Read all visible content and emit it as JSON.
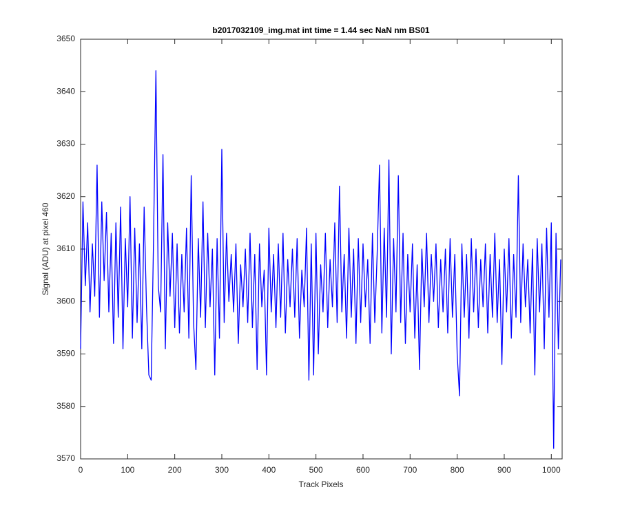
{
  "chart_data": {
    "type": "line",
    "title": "b2017032109_img.mat int time = 1.44 sec  NaN nm BS01",
    "x_label": "Track Pixels",
    "y_label": "Signal (ADU) at pixel 460",
    "xlim": [
      0,
      1023
    ],
    "xticks": [
      0,
      100,
      200,
      300,
      400,
      500,
      600,
      700,
      800,
      900,
      1000
    ],
    "ylim": [
      3570,
      3650
    ],
    "yticks": [
      3570,
      3580,
      3590,
      3600,
      3610,
      3620,
      3630,
      3640,
      3650
    ],
    "grid": false,
    "x": [
      0,
      5,
      10,
      15,
      20,
      25,
      30,
      35,
      40,
      45,
      50,
      55,
      60,
      65,
      70,
      75,
      80,
      85,
      90,
      95,
      100,
      105,
      110,
      115,
      120,
      125,
      130,
      135,
      140,
      145,
      150,
      155,
      160,
      165,
      170,
      175,
      180,
      185,
      190,
      195,
      200,
      205,
      210,
      215,
      220,
      225,
      230,
      235,
      240,
      245,
      250,
      255,
      260,
      265,
      270,
      275,
      280,
      285,
      290,
      295,
      300,
      305,
      310,
      315,
      320,
      325,
      330,
      335,
      340,
      345,
      350,
      355,
      360,
      365,
      370,
      375,
      380,
      385,
      390,
      395,
      400,
      405,
      410,
      415,
      420,
      425,
      430,
      435,
      440,
      445,
      450,
      455,
      460,
      465,
      470,
      475,
      480,
      485,
      490,
      495,
      500,
      505,
      510,
      515,
      520,
      525,
      530,
      535,
      540,
      545,
      550,
      555,
      560,
      565,
      570,
      575,
      580,
      585,
      590,
      595,
      600,
      605,
      610,
      615,
      620,
      625,
      630,
      635,
      640,
      645,
      650,
      655,
      660,
      665,
      670,
      675,
      680,
      685,
      690,
      695,
      700,
      705,
      710,
      715,
      720,
      725,
      730,
      735,
      740,
      745,
      750,
      755,
      760,
      765,
      770,
      775,
      780,
      785,
      790,
      795,
      800,
      805,
      810,
      815,
      820,
      825,
      830,
      835,
      840,
      845,
      850,
      855,
      860,
      865,
      870,
      875,
      880,
      885,
      890,
      895,
      900,
      905,
      910,
      915,
      920,
      925,
      930,
      935,
      940,
      945,
      950,
      955,
      960,
      965,
      970,
      975,
      980,
      985,
      990,
      995,
      1000,
      1005,
      1010,
      1015,
      1020
    ],
    "series": [
      {
        "color": "#0000ff",
        "values": [
          3591,
          3619,
          3603,
          3615,
          3598,
          3611,
          3601,
          3626,
          3597,
          3619,
          3604,
          3617,
          3598,
          3613,
          3592,
          3615,
          3597,
          3618,
          3591,
          3612,
          3599,
          3620,
          3593,
          3614,
          3596,
          3611,
          3591,
          3618,
          3599,
          3586,
          3585,
          3612,
          3644,
          3603,
          3598,
          3628,
          3591,
          3615,
          3601,
          3613,
          3595,
          3611,
          3594,
          3609,
          3598,
          3614,
          3593,
          3624,
          3596,
          3587,
          3612,
          3597,
          3619,
          3595,
          3613,
          3599,
          3610,
          3586,
          3612,
          3593,
          3629,
          3596,
          3613,
          3600,
          3609,
          3598,
          3611,
          3592,
          3607,
          3599,
          3610,
          3596,
          3613,
          3595,
          3609,
          3587,
          3611,
          3599,
          3606,
          3586,
          3614,
          3598,
          3609,
          3595,
          3611,
          3597,
          3613,
          3594,
          3608,
          3599,
          3610,
          3597,
          3612,
          3593,
          3606,
          3599,
          3614,
          3585,
          3611,
          3586,
          3613,
          3590,
          3607,
          3598,
          3613,
          3595,
          3608,
          3599,
          3615,
          3596,
          3622,
          3598,
          3609,
          3593,
          3614,
          3597,
          3610,
          3592,
          3612,
          3596,
          3611,
          3599,
          3608,
          3592,
          3613,
          3596,
          3609,
          3626,
          3594,
          3614,
          3597,
          3627,
          3590,
          3612,
          3598,
          3624,
          3596,
          3613,
          3592,
          3609,
          3598,
          3611,
          3593,
          3607,
          3587,
          3610,
          3599,
          3613,
          3596,
          3609,
          3600,
          3611,
          3595,
          3608,
          3598,
          3610,
          3594,
          3612,
          3597,
          3609,
          3590,
          3582,
          3611,
          3597,
          3609,
          3593,
          3612,
          3598,
          3610,
          3595,
          3608,
          3599,
          3611,
          3594,
          3609,
          3597,
          3613,
          3596,
          3608,
          3588,
          3610,
          3598,
          3612,
          3593,
          3609,
          3597,
          3624,
          3596,
          3611,
          3599,
          3608,
          3594,
          3610,
          3586,
          3612,
          3598,
          3611,
          3591,
          3614,
          3597,
          3615,
          3572,
          3613,
          3591,
          3608
        ]
      }
    ]
  }
}
